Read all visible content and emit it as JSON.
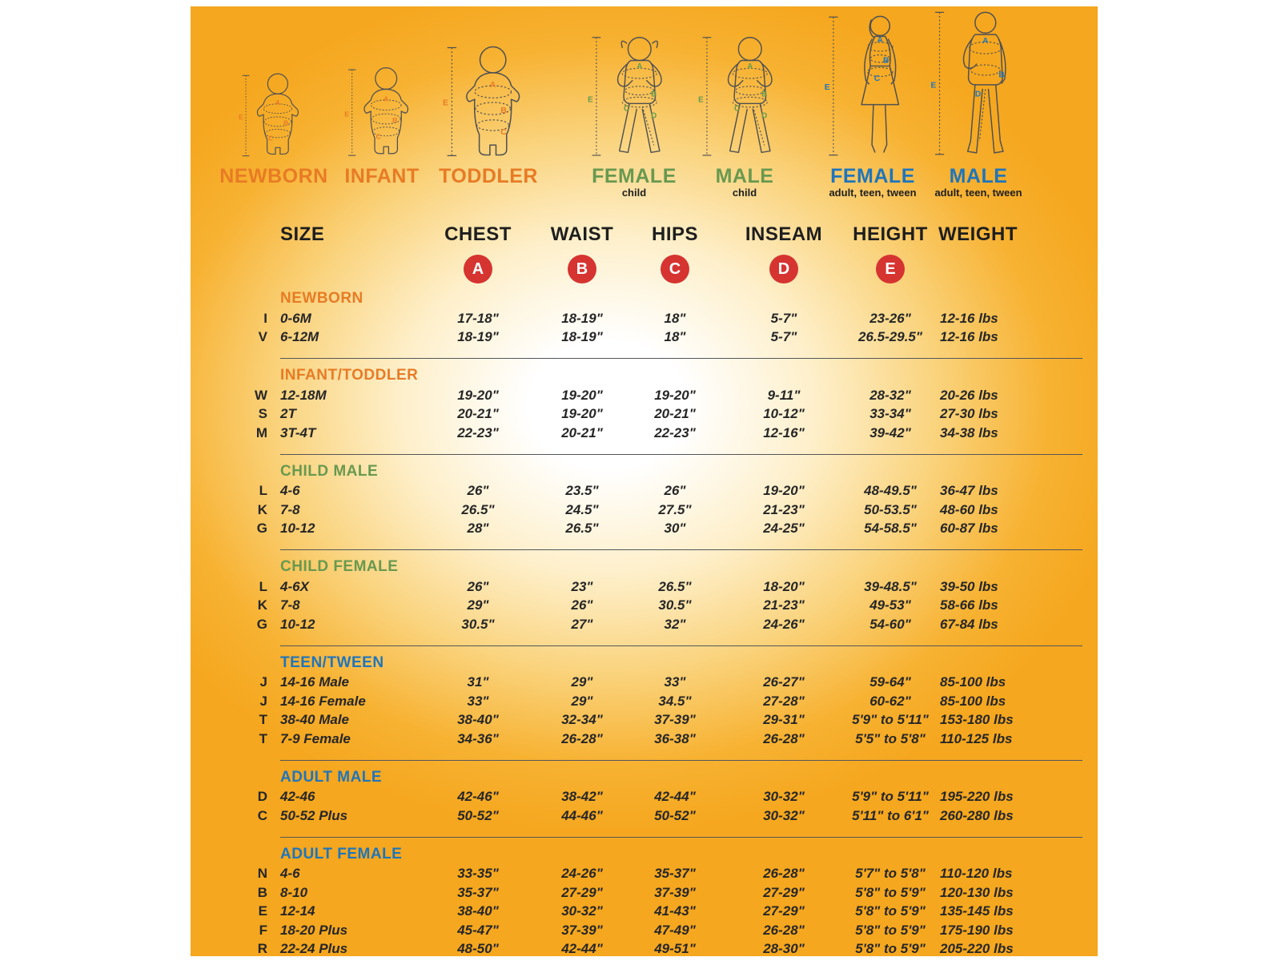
{
  "colors": {
    "background_orange": "#f5a71f",
    "accent_orange": "#e87b25",
    "accent_green": "#68994f",
    "accent_blue": "#1f75bb",
    "badge_red": "#d53431",
    "text_dark": "#1e1e1e"
  },
  "figures": [
    {
      "id": "newborn",
      "label": "NEWBORN",
      "sublabel": "",
      "measure": "E",
      "markers": [
        "A",
        "B",
        "C"
      ]
    },
    {
      "id": "infant",
      "label": "INFANT",
      "sublabel": "",
      "measure": "E",
      "markers": [
        "A",
        "B",
        "C"
      ]
    },
    {
      "id": "toddler",
      "label": "TODDLER",
      "sublabel": "",
      "measure": "E",
      "markers": [
        "A",
        "B",
        "C"
      ]
    },
    {
      "id": "female-child",
      "label": "FEMALE",
      "sublabel": "child",
      "measure": "E",
      "markers": [
        "A",
        "B",
        "C",
        "D"
      ]
    },
    {
      "id": "male-child",
      "label": "MALE",
      "sublabel": "child",
      "measure": "E",
      "markers": [
        "A",
        "B",
        "C",
        "D"
      ]
    },
    {
      "id": "female-adult",
      "label": "FEMALE",
      "sublabel": "adult, teen, tween",
      "measure": "E",
      "markers": [
        "A",
        "B",
        "C"
      ]
    },
    {
      "id": "male-adult",
      "label": "MALE",
      "sublabel": "adult, teen, tween",
      "measure": "E",
      "markers": [
        "A",
        "B",
        "D"
      ]
    }
  ],
  "badges": [
    "A",
    "B",
    "C",
    "D",
    "E"
  ],
  "chart_data": {
    "type": "table",
    "columns": [
      "SIZE",
      "CHEST",
      "WAIST",
      "HIPS",
      "INSEAM",
      "HEIGHT",
      "WEIGHT"
    ],
    "column_badges": [
      "",
      "A",
      "B",
      "C",
      "D",
      "E",
      ""
    ],
    "sections": [
      {
        "title": "NEWBORN",
        "color": "#e87b25",
        "rows": [
          {
            "code": "I",
            "size": "0-6M",
            "chest": "17-18\"",
            "waist": "18-19\"",
            "hips": "18\"",
            "inseam": "5-7\"",
            "height": "23-26\"",
            "weight": "12-16 lbs"
          },
          {
            "code": "V",
            "size": "6-12M",
            "chest": "18-19\"",
            "waist": "18-19\"",
            "hips": "18\"",
            "inseam": "5-7\"",
            "height": "26.5-29.5\"",
            "weight": "12-16 lbs"
          }
        ]
      },
      {
        "title": "INFANT/TODDLER",
        "color": "#e87b25",
        "rows": [
          {
            "code": "W",
            "size": "12-18M",
            "chest": "19-20\"",
            "waist": "19-20\"",
            "hips": "19-20\"",
            "inseam": "9-11\"",
            "height": "28-32\"",
            "weight": "20-26 lbs"
          },
          {
            "code": "S",
            "size": "2T",
            "chest": "20-21\"",
            "waist": "19-20\"",
            "hips": "20-21\"",
            "inseam": "10-12\"",
            "height": "33-34\"",
            "weight": "27-30 lbs"
          },
          {
            "code": "M",
            "size": "3T-4T",
            "chest": "22-23\"",
            "waist": "20-21\"",
            "hips": "22-23\"",
            "inseam": "12-16\"",
            "height": "39-42\"",
            "weight": "34-38 lbs"
          }
        ]
      },
      {
        "title": "CHILD MALE",
        "color": "#68994f",
        "rows": [
          {
            "code": "L",
            "size": "4-6",
            "chest": "26\"",
            "waist": "23.5\"",
            "hips": "26\"",
            "inseam": "19-20\"",
            "height": "48-49.5\"",
            "weight": "36-47 lbs"
          },
          {
            "code": "K",
            "size": "7-8",
            "chest": "26.5\"",
            "waist": "24.5\"",
            "hips": "27.5\"",
            "inseam": "21-23\"",
            "height": "50-53.5\"",
            "weight": "48-60 lbs"
          },
          {
            "code": "G",
            "size": "10-12",
            "chest": "28\"",
            "waist": "26.5\"",
            "hips": "30\"",
            "inseam": "24-25\"",
            "height": "54-58.5\"",
            "weight": "60-87 lbs"
          }
        ]
      },
      {
        "title": "CHILD FEMALE",
        "color": "#68994f",
        "rows": [
          {
            "code": "L",
            "size": "4-6X",
            "chest": "26\"",
            "waist": "23\"",
            "hips": "26.5\"",
            "inseam": "18-20\"",
            "height": "39-48.5\"",
            "weight": "39-50 lbs"
          },
          {
            "code": "K",
            "size": "7-8",
            "chest": "29\"",
            "waist": "26\"",
            "hips": "30.5\"",
            "inseam": "21-23\"",
            "height": "49-53\"",
            "weight": "58-66 lbs"
          },
          {
            "code": "G",
            "size": "10-12",
            "chest": "30.5\"",
            "waist": "27\"",
            "hips": "32\"",
            "inseam": "24-26\"",
            "height": "54-60\"",
            "weight": "67-84 lbs"
          }
        ]
      },
      {
        "title": "TEEN/TWEEN",
        "color": "#1f75bb",
        "rows": [
          {
            "code": "J",
            "size": "14-16 Male",
            "chest": "31\"",
            "waist": "29\"",
            "hips": "33\"",
            "inseam": "26-27\"",
            "height": "59-64\"",
            "weight": "85-100 lbs"
          },
          {
            "code": "J",
            "size": "14-16 Female",
            "chest": "33\"",
            "waist": "29\"",
            "hips": "34.5\"",
            "inseam": "27-28\"",
            "height": "60-62\"",
            "weight": "85-100 lbs"
          },
          {
            "code": "T",
            "size": "38-40 Male",
            "chest": "38-40\"",
            "waist": "32-34\"",
            "hips": "37-39\"",
            "inseam": "29-31\"",
            "height": "5'9\" to 5'11\"",
            "weight": "153-180 lbs"
          },
          {
            "code": "T",
            "size": "7-9 Female",
            "chest": "34-36\"",
            "waist": "26-28\"",
            "hips": "36-38\"",
            "inseam": "26-28\"",
            "height": "5'5\" to 5'8\"",
            "weight": "110-125 lbs"
          }
        ]
      },
      {
        "title": "ADULT MALE",
        "color": "#1f75bb",
        "rows": [
          {
            "code": "D",
            "size": "42-46",
            "chest": "42-46\"",
            "waist": "38-42\"",
            "hips": "42-44\"",
            "inseam": "30-32\"",
            "height": "5'9\" to 5'11\"",
            "weight": "195-220 lbs"
          },
          {
            "code": "C",
            "size": "50-52 Plus",
            "chest": "50-52\"",
            "waist": "44-46\"",
            "hips": "50-52\"",
            "inseam": "30-32\"",
            "height": "5'11\" to 6'1\"",
            "weight": "260-280 lbs"
          }
        ]
      },
      {
        "title": "ADULT FEMALE",
        "color": "#1f75bb",
        "rows": [
          {
            "code": "N",
            "size": "4-6",
            "chest": "33-35\"",
            "waist": "24-26\"",
            "hips": "35-37\"",
            "inseam": "26-28\"",
            "height": "5'7\" to 5'8\"",
            "weight": "110-120 lbs"
          },
          {
            "code": "B",
            "size": "8-10",
            "chest": "35-37\"",
            "waist": "27-29\"",
            "hips": "37-39\"",
            "inseam": "27-29\"",
            "height": "5'8\" to 5'9\"",
            "weight": "120-130 lbs"
          },
          {
            "code": "E",
            "size": "12-14",
            "chest": "38-40\"",
            "waist": "30-32\"",
            "hips": "41-43\"",
            "inseam": "27-29\"",
            "height": "5'8\" to 5'9\"",
            "weight": "135-145 lbs"
          },
          {
            "code": "F",
            "size": "18-20 Plus",
            "chest": "45-47\"",
            "waist": "37-39\"",
            "hips": "47-49\"",
            "inseam": "26-28\"",
            "height": "5'8\" to 5'9\"",
            "weight": "175-190 lbs"
          },
          {
            "code": "R",
            "size": "22-24 Plus",
            "chest": "48-50\"",
            "waist": "42-44\"",
            "hips": "49-51\"",
            "inseam": "28-30\"",
            "height": "5'8\" to 5'9\"",
            "weight": "205-220 lbs"
          }
        ]
      }
    ]
  }
}
